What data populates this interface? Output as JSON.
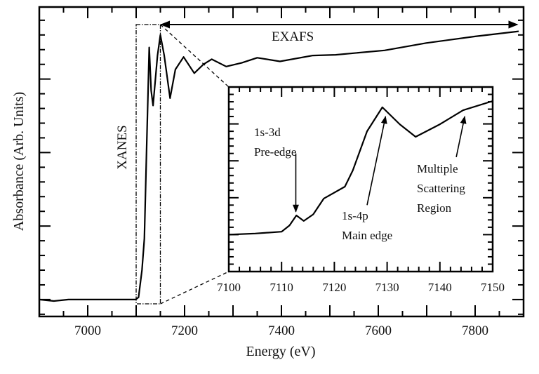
{
  "chart_data": [
    {
      "type": "line",
      "xlabel": "Energy (eV)",
      "ylabel": "Absorbance (Arb. Units)",
      "xlim": [
        6900,
        7900
      ],
      "ylim": [
        -0.23,
        3.98
      ],
      "xticks": [
        7000,
        7200,
        7400,
        7600,
        7800
      ],
      "yticks_labeled": false,
      "grid": false,
      "line_color": "#000000",
      "series": [
        {
          "x": [
            6900,
            6930,
            6960,
            7000,
            7050,
            7099,
            7105,
            7112,
            7117,
            7122,
            7127,
            7131,
            7135,
            7144,
            7150,
            7158,
            7170,
            7181,
            7198,
            7220,
            7239,
            7256,
            7286,
            7318,
            7350,
            7397,
            7465,
            7512,
            7613,
            7699,
            7800,
            7890
          ],
          "y": [
            0.0,
            -0.02,
            0.0,
            0.0,
            0.0,
            0.0,
            0.03,
            0.4,
            0.83,
            2.17,
            3.43,
            2.84,
            2.64,
            3.32,
            3.6,
            3.32,
            2.74,
            3.13,
            3.3,
            3.08,
            3.2,
            3.27,
            3.17,
            3.22,
            3.29,
            3.24,
            3.32,
            3.33,
            3.39,
            3.49,
            3.58,
            3.65
          ]
        }
      ],
      "annotations": {
        "xanes_label": "XANES",
        "xanes_box": [
          7100,
          7150
        ],
        "exafs_label": "EXAFS",
        "exafs_range": [
          7150,
          7890
        ]
      }
    },
    {
      "type": "line",
      "role": "inset",
      "xlim": [
        7100,
        7150
      ],
      "ylim": [
        0,
        5
      ],
      "xticks": [
        7100,
        7110,
        7120,
        7130,
        7140,
        7150
      ],
      "yticks_labeled": false,
      "grid": false,
      "series": [
        {
          "x": [
            7100,
            7105,
            7110,
            7111.5,
            7112.8,
            7114.2,
            7116,
            7118,
            7122,
            7123.5,
            7126.2,
            7129.1,
            7132.4,
            7135.4,
            7140,
            7144.4,
            7150
          ],
          "y": [
            1.0,
            1.03,
            1.08,
            1.25,
            1.52,
            1.37,
            1.55,
            1.98,
            2.3,
            2.74,
            3.8,
            4.45,
            3.99,
            3.65,
            3.99,
            4.37,
            4.62
          ]
        }
      ],
      "annotations": [
        {
          "lines": [
            "1s-3d",
            "Pre-edge"
          ],
          "arrow_from": [
            7112.7,
            3.2
          ],
          "arrow_to": [
            7112.7,
            1.62
          ]
        },
        {
          "lines": [
            "1s-4p",
            "Main edge"
          ],
          "arrow_from": [
            7126.2,
            1.8
          ],
          "arrow_to": [
            7129.7,
            4.2
          ]
        },
        {
          "lines": [
            "Multiple",
            "Scattering",
            "Region"
          ],
          "arrow_from": [
            7143.1,
            3.1
          ],
          "arrow_to": [
            7144.7,
            4.2
          ]
        }
      ]
    }
  ]
}
